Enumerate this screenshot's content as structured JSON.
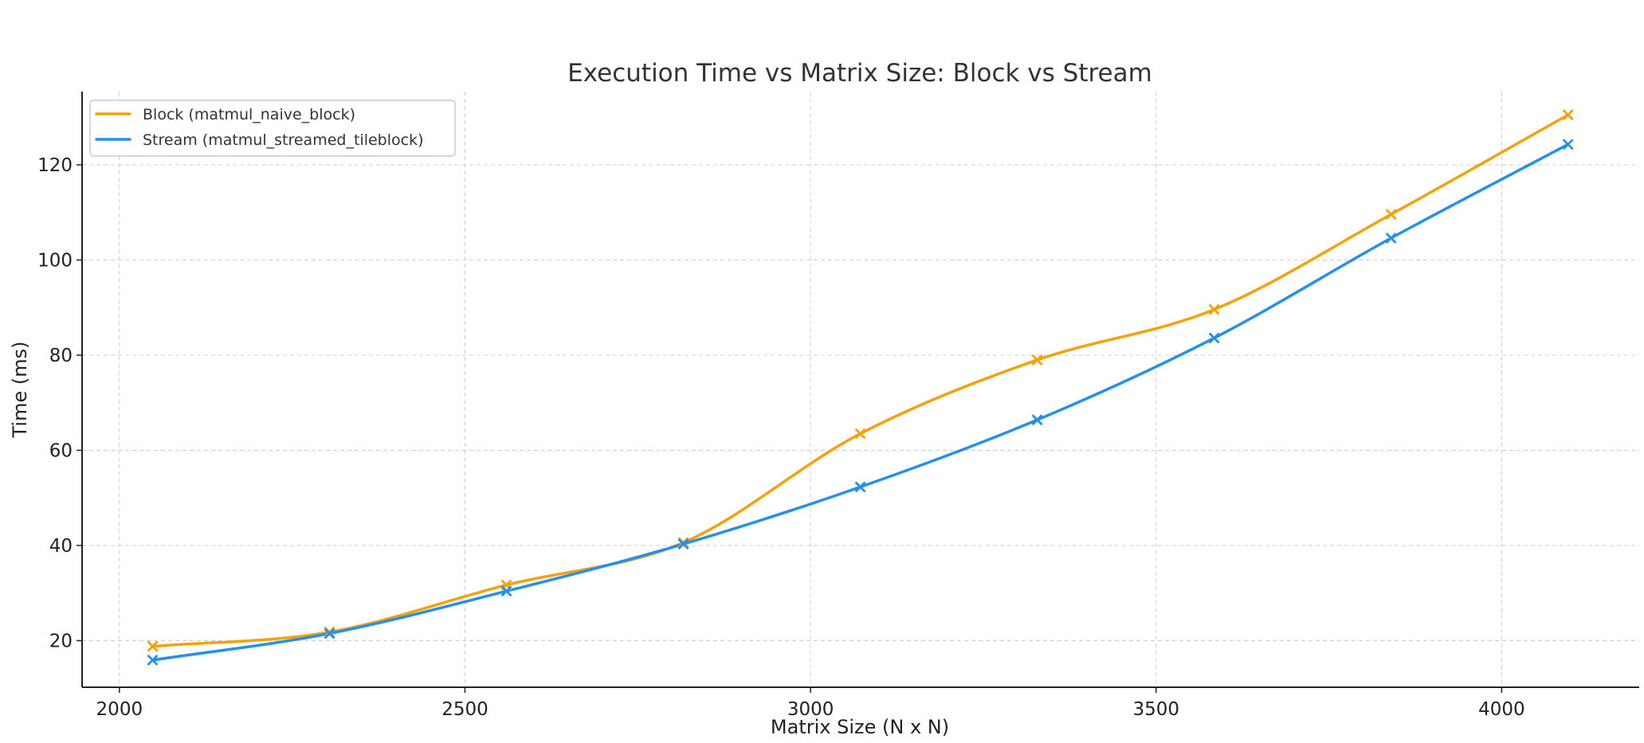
{
  "chart_data": {
    "type": "line",
    "title": "Execution Time vs Matrix Size: Block vs Stream",
    "xlabel": "Matrix Size (N x N)",
    "ylabel": "Time (ms)",
    "xlim": [
      1946,
      4199
    ],
    "ylim": [
      10.2,
      135.4
    ],
    "x_ticks": [
      2000,
      2500,
      3000,
      3500,
      4000
    ],
    "y_ticks": [
      20,
      40,
      60,
      80,
      100,
      120
    ],
    "grid": true,
    "legend_position": "top-left",
    "marker": "x",
    "smoothed": true,
    "x": [
      2048,
      2304,
      2560,
      2816,
      3072,
      3328,
      3584,
      3840,
      4096
    ],
    "series": [
      {
        "name": "Block (matmul_naive_block)",
        "color": "#f5a20a",
        "values": [
          18.8,
          21.8,
          31.7,
          40.6,
          63.5,
          79.0,
          89.6,
          109.6,
          130.5
        ]
      },
      {
        "name": "Stream (matmul_streamed_tileblock)",
        "color": "#2390f0",
        "values": [
          15.9,
          21.5,
          30.4,
          40.3,
          52.3,
          66.4,
          83.6,
          104.6,
          124.3
        ]
      }
    ]
  }
}
